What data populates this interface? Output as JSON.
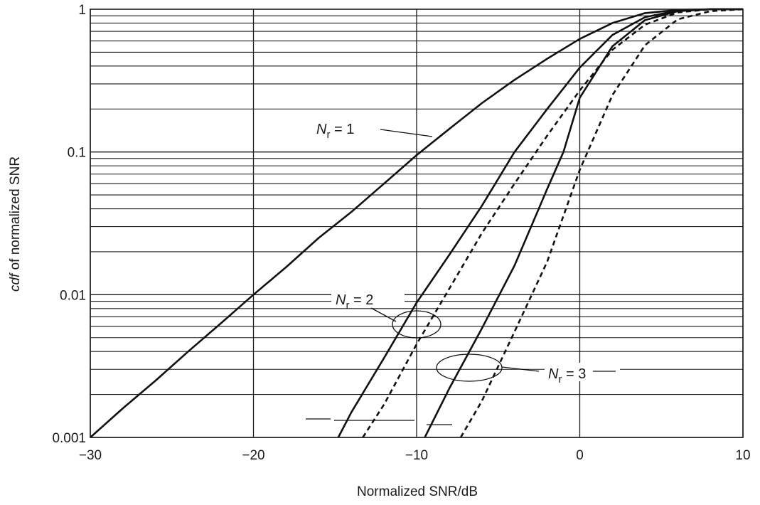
{
  "chart_data": {
    "type": "line",
    "title": "",
    "xlabel": "Normalized SNR/dB",
    "ylabel_italic": "cdf",
    "ylabel_rest": " of normalized SNR",
    "xlim": [
      -30,
      10
    ],
    "ylim": [
      0.001,
      1
    ],
    "yscale": "log",
    "grid": true,
    "x_ticks": [
      {
        "value": -30,
        "label": "−30"
      },
      {
        "value": -20,
        "label": "−20"
      },
      {
        "value": -10,
        "label": "−10"
      },
      {
        "value": 0,
        "label": "0"
      },
      {
        "value": 10,
        "label": "10"
      }
    ],
    "y_ticks": [
      {
        "value": 0.001,
        "label": "0.001"
      },
      {
        "value": 0.01,
        "label": "0.01"
      },
      {
        "value": 0.1,
        "label": "0.1"
      },
      {
        "value": 1,
        "label": "1"
      }
    ],
    "series": [
      {
        "style": "solid",
        "x": [
          -30,
          -28,
          -26,
          -24,
          -22,
          -20,
          -18,
          -16,
          -14,
          -12,
          -10,
          -8,
          -6,
          -4,
          -2,
          0,
          2,
          4,
          6,
          8,
          10
        ],
        "y": [
          0.001,
          0.0016,
          0.0025,
          0.004,
          0.0063,
          0.01,
          0.0156,
          0.025,
          0.038,
          0.06,
          0.095,
          0.145,
          0.22,
          0.32,
          0.45,
          0.62,
          0.8,
          0.94,
          0.99,
          1.0,
          1.0
        ]
      },
      {
        "style": "solid",
        "x": [
          -14.8,
          -14,
          -12,
          -10,
          -8,
          -6,
          -4,
          -2,
          0,
          2,
          4,
          6,
          8,
          10
        ],
        "y": [
          0.001,
          0.0015,
          0.0036,
          0.0088,
          0.019,
          0.042,
          0.1,
          0.2,
          0.39,
          0.66,
          0.88,
          0.98,
          1.0,
          1.0
        ]
      },
      {
        "style": "dashed",
        "x": [
          -13.3,
          -12,
          -10,
          -8,
          -6,
          -4,
          -2,
          0,
          2,
          4,
          6,
          8,
          10
        ],
        "y": [
          0.001,
          0.0017,
          0.0045,
          0.011,
          0.027,
          0.06,
          0.13,
          0.27,
          0.52,
          0.78,
          0.95,
          1.0,
          1.0
        ]
      },
      {
        "style": "solid",
        "x": [
          -9.5,
          -8,
          -6,
          -4,
          -2,
          -1,
          0,
          2,
          4,
          6,
          8,
          10
        ],
        "y": [
          0.001,
          0.0022,
          0.0058,
          0.016,
          0.055,
          0.1,
          0.24,
          0.55,
          0.84,
          0.97,
          1.0,
          1.0
        ]
      },
      {
        "style": "dashed",
        "x": [
          -7.3,
          -6,
          -4,
          -2,
          0,
          2,
          4,
          6,
          8,
          10
        ],
        "y": [
          0.001,
          0.0018,
          0.0055,
          0.017,
          0.075,
          0.25,
          0.56,
          0.85,
          0.97,
          1.0
        ]
      }
    ],
    "annotations": [
      {
        "id": "nr1",
        "prefix": "N",
        "subscript": "r",
        "suffix": " = 1"
      },
      {
        "id": "nr2",
        "prefix": "N",
        "subscript": "r",
        "suffix": " = 2"
      },
      {
        "id": "nr3",
        "prefix": "N",
        "subscript": "r",
        "suffix": " = 3"
      }
    ]
  }
}
